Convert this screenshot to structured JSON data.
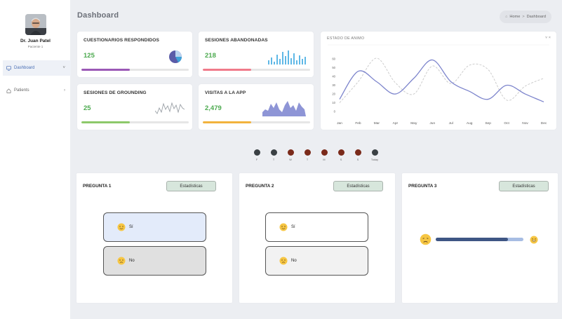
{
  "profile": {
    "name": "Dr. Juan Patel",
    "role": "Paciente 1"
  },
  "sidebar": {
    "items": [
      {
        "label": "Dashboard",
        "icon": "monitor-icon",
        "active": true,
        "chevron": "˅"
      },
      {
        "label": "Patients",
        "icon": "home-icon",
        "active": false,
        "chevron": "›"
      }
    ]
  },
  "header": {
    "title": "Dashboard",
    "breadcrumb": {
      "home": "Home",
      "separator": ">",
      "current": "Dashboard"
    }
  },
  "stats": [
    {
      "title": "CUESTIONARIOS RESPONDIDOS",
      "value": "125",
      "progress": 0.45,
      "color": "#9b59b6",
      "graphic": "pie-icon"
    },
    {
      "title": "SESIONES ABANDONADAS",
      "value": "218",
      "progress": 0.45,
      "color": "#f07a8a",
      "graphic": "bar-sparkline-icon"
    },
    {
      "title": "SESIONES DE GROUNDING",
      "value": "25",
      "progress": 0.45,
      "color": "#8dc96a",
      "graphic": "line-sparkline-icon"
    },
    {
      "title": "VISITAS A LA APP",
      "value": "2,479",
      "progress": 0.45,
      "color": "#f2b33d",
      "graphic": "area-sparkline-icon"
    }
  ],
  "mood": {
    "title": "ESTADO DE ANIMO",
    "controls": "˅ ×"
  },
  "chart_data": {
    "type": "line",
    "categories": [
      "Jan",
      "Feb",
      "Mar",
      "Apr",
      "May",
      "Jun",
      "Jul",
      "Aug",
      "Sep",
      "Oct",
      "Nov",
      "Dec"
    ],
    "series": [
      {
        "values": [
          14,
          46,
          34,
          20,
          38,
          59,
          34,
          23,
          14,
          30,
          20,
          11
        ],
        "color": "#7c84cc",
        "style": "solid"
      },
      {
        "values": [
          10,
          34,
          61,
          33,
          20,
          52,
          32,
          53,
          48,
          13,
          29,
          38
        ],
        "color": "#cccccc",
        "style": "dashed"
      }
    ],
    "yticks": [
      0,
      10,
      20,
      30,
      40,
      50,
      60
    ],
    "ylim": [
      0,
      65
    ],
    "grid": false
  },
  "week": {
    "days": [
      {
        "label": "F",
        "color": "#3a4044"
      },
      {
        "label": "T",
        "color": "#3a4044"
      },
      {
        "label": "W",
        "color": "#7a2a1a"
      },
      {
        "label": "T",
        "color": "#7a2a1a"
      },
      {
        "label": "M",
        "color": "#7a2a1a"
      },
      {
        "label": "S",
        "color": "#7a2a1a"
      },
      {
        "label": "S",
        "color": "#7a2a1a"
      },
      {
        "label": "Today",
        "color": "#3a4044"
      }
    ]
  },
  "questions": [
    {
      "title": "PREGUNTA 1",
      "button": "Estadísticas",
      "answers": [
        {
          "label": "Sí",
          "emoji": "smile-emoji-icon"
        },
        {
          "label": "No",
          "emoji": "frown-emoji-icon"
        }
      ]
    },
    {
      "title": "PREGUNTA 2",
      "button": "Estadísticas",
      "answers": [
        {
          "label": "Sí",
          "emoji": "smile-emoji-icon"
        },
        {
          "label": "No",
          "emoji": "frown-emoji-icon"
        }
      ]
    },
    {
      "title": "PREGUNTA 3",
      "button": "Estadísticas",
      "slider": {
        "value": 0.82,
        "left_emoji": "sad-emoji-icon",
        "right_emoji": "grin-emoji-icon"
      }
    }
  ]
}
